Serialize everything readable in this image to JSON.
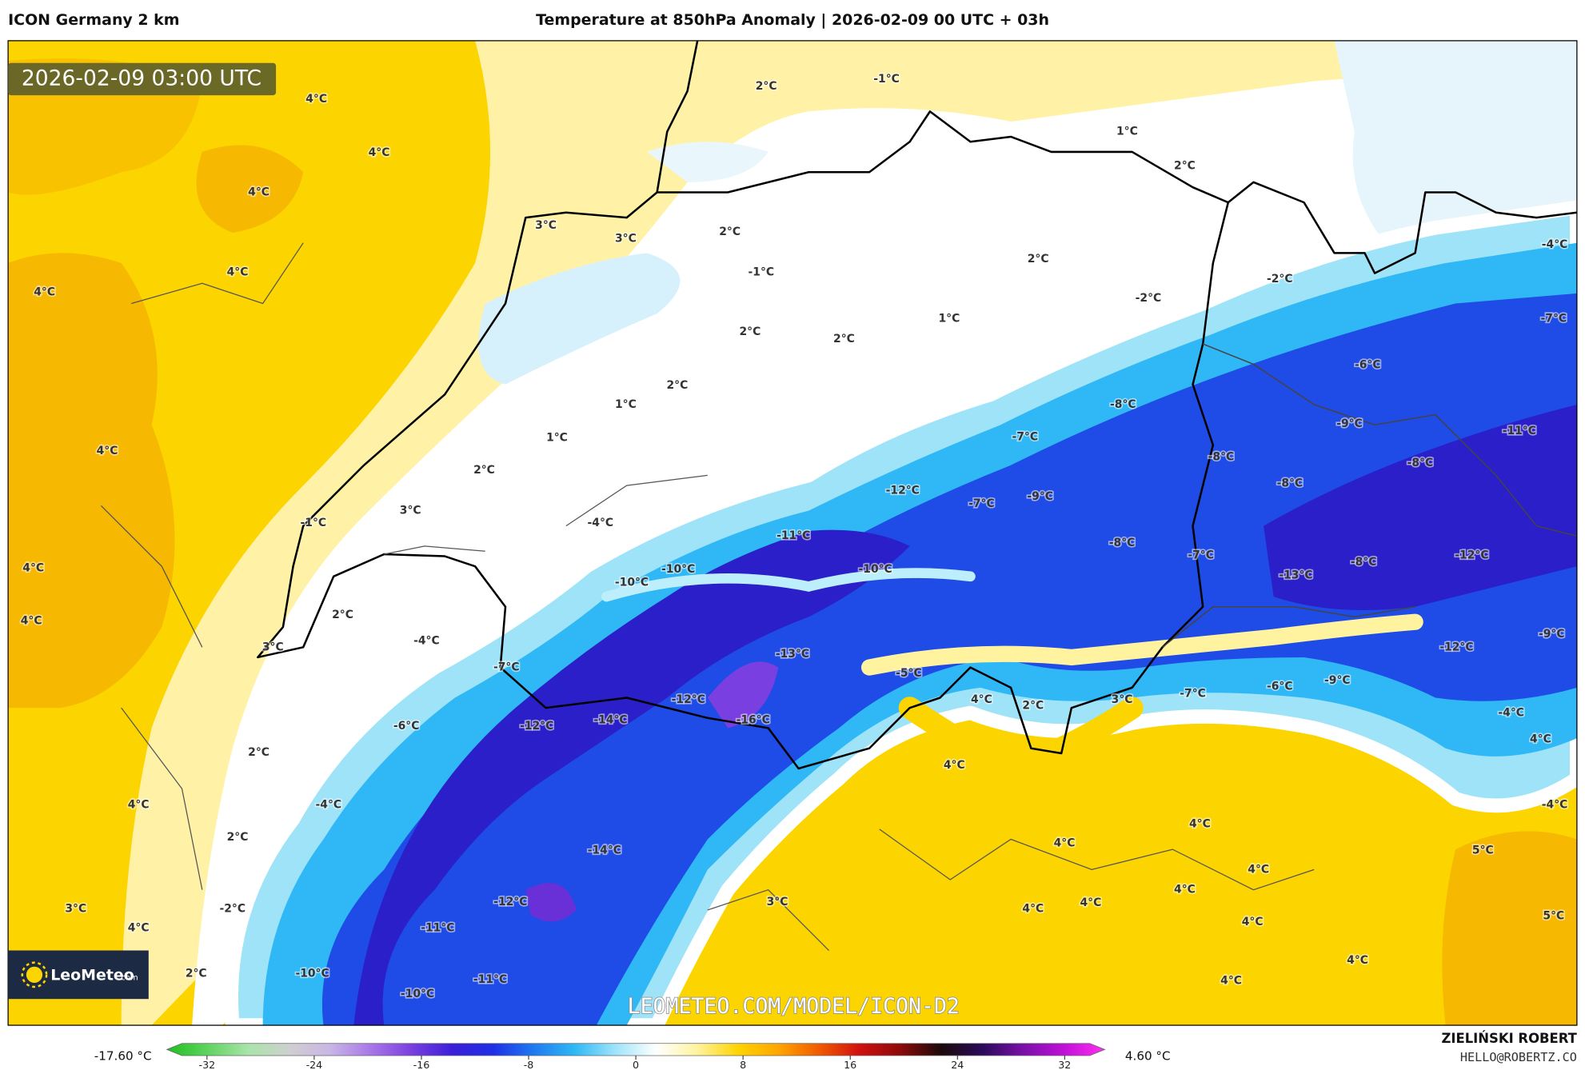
{
  "header": {
    "model": "ICON Germany 2 km",
    "title": "Temperature at 850hPa Anomaly | 2026-02-09 00 UTC + 03h"
  },
  "map": {
    "timestamp": "2026-02-09 03:00 UTC",
    "watermark": "LEOMETEO.COM/MODEL/ICON-D2",
    "labels": [
      "4°C",
      "4°C",
      "4°C",
      "4°C",
      "4°C",
      "3°C",
      "3°C",
      "2°C",
      "2°C",
      "-1°C",
      "1°C",
      "2°C",
      "-1°C",
      "2°C",
      "-2°C",
      "-2°C",
      "-4°C",
      "2°C",
      "2°C",
      "1°C",
      "-7°C",
      "-6°C",
      "2°C",
      "1°C",
      "1°C",
      "-8°C",
      "-7°C",
      "-9°C",
      "-11°C",
      "4°C",
      "2°C",
      "-8°C",
      "-8°C",
      "-8°C",
      "-12°C",
      "-7°C",
      "-9°C",
      "3°C",
      "-1°C",
      "-4°C",
      "-11°C",
      "-8°C",
      "-7°C",
      "-8°C",
      "-12°C",
      "4°C",
      "-10°C",
      "-10°C",
      "-10°C",
      "-13°C",
      "4°C",
      "2°C",
      "-4°C",
      "3°C",
      "-9°C",
      "-12°C",
      "-13°C",
      "-7°C",
      "-5°C",
      "-9°C",
      "-6°C",
      "-7°C",
      "4°C",
      "2°C",
      "3°C",
      "-12°C",
      "-14°C",
      "-16°C",
      "-12°C",
      "-6°C",
      "-4°C",
      "4°C",
      "2°C",
      "4°C",
      "4°C",
      "-4°C",
      "-4°C",
      "2°C",
      "4°C",
      "4°C",
      "-14°C",
      "5°C",
      "4°C",
      "4°C",
      "-12°C",
      "3°C",
      "4°C",
      "4°C",
      "3°C",
      "-2°C",
      "4°C",
      "5°C",
      "4°C",
      "-11°C",
      "4°C",
      "2°C",
      "-10°C",
      "-11°C",
      "4°C",
      "-10°C"
    ]
  },
  "logo": {
    "brand": "LeoMeteo",
    "suffix": ".com"
  },
  "colorbar": {
    "min_label": "-17.60 °C",
    "max_label": "4.60 °C",
    "lim": [
      -35,
      35
    ],
    "ticks": [
      -32,
      -24,
      -16,
      -8,
      0,
      8,
      16,
      24,
      32
    ],
    "colors": [
      "#1fbf1f",
      "#5fd35f",
      "#a9e4a9",
      "#cfcfcf",
      "#c9b6e6",
      "#a877e8",
      "#7a3fe0",
      "#3b1fd8",
      "#1f2fe6",
      "#1f7af0",
      "#2fb8f5",
      "#9fe4fa",
      "#ffffff",
      "#fff3a0",
      "#ffd400",
      "#ffa500",
      "#f05a00",
      "#d01010",
      "#8a0a0a",
      "#1a0a0a",
      "#2a0a5a",
      "#7a10a8",
      "#c010d8",
      "#ff30f0"
    ]
  },
  "credits": {
    "author": "ZIELIŃSKI ROBERT",
    "email": "HELLO@ROBERTZ.CO"
  }
}
